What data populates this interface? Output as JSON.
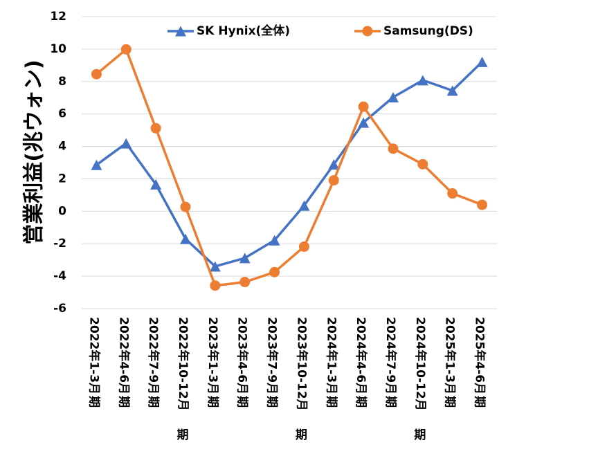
{
  "chart_data": {
    "type": "line",
    "title": "",
    "xlabel": "",
    "ylabel": "営業利益(兆ウォン)",
    "ylim": [
      -6,
      12
    ],
    "yticks": [
      -6,
      -4,
      -2,
      0,
      2,
      4,
      6,
      8,
      10,
      12
    ],
    "grid": true,
    "legend_position": "top",
    "categories": [
      "2022年1-3月期",
      "2022年4-6月期",
      "2022年7-9月期",
      "2022年10-12月期",
      "2023年1-3月期",
      "2023年4-6月期",
      "2023年7-9月期",
      "2023年10-12月期",
      "2024年1-3月期",
      "2024年4-6月期",
      "2024年7-9月期",
      "2024年10-12月期",
      "2025年1-3月期",
      "2025年4-6月期"
    ],
    "series": [
      {
        "name": "SK Hynix(全体)",
        "color": "#4472c4",
        "marker": "triangle",
        "values": [
          2.86,
          4.19,
          1.66,
          -1.7,
          -3.4,
          -2.88,
          -1.79,
          0.35,
          2.89,
          5.47,
          7.03,
          8.08,
          7.44,
          9.21
        ]
      },
      {
        "name": "Samsung(DS)",
        "color": "#ed7d31",
        "marker": "circle",
        "values": [
          8.45,
          9.98,
          5.12,
          0.27,
          -4.58,
          -4.36,
          -3.75,
          -2.18,
          1.91,
          6.45,
          3.86,
          2.9,
          1.1,
          0.4
        ]
      }
    ]
  }
}
